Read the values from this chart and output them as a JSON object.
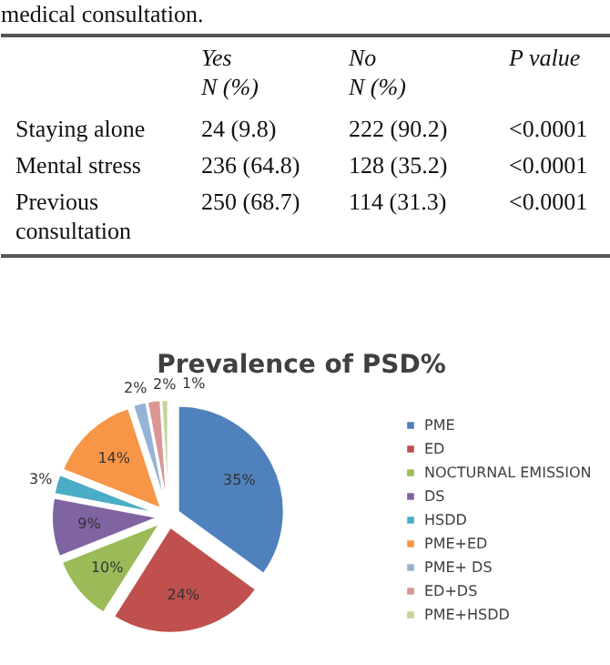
{
  "chart_data": {
    "type": "pie",
    "title": "Prevalence of PSD%",
    "annotations": [
      "medical consultation.",
      "Yes\nN (%)",
      "No\nN (%)",
      "P value",
      "Staying alone",
      "24 (9.8)",
      "222 (90.2)",
      "<0.0001",
      "Mental stress",
      "236 (64.8)",
      "128 (35.2)",
      "<0.0001",
      "Previous\nconsultation",
      "250 (68.7)",
      "114 (31.3)",
      "<0.0001"
    ],
    "categories": [
      "PME",
      "ED",
      "NOCTURNAL EMISSION",
      "DS",
      "HSDD",
      "PME+ED",
      "PME+ DS",
      "ED+DS",
      "PME+HSDD"
    ],
    "values": [
      35,
      24,
      10,
      9,
      3,
      14,
      2,
      2,
      1
    ],
    "value_labels": [
      "35%",
      "24%",
      "10%",
      "9%",
      "3%",
      "14%",
      "2%",
      "2%",
      "1%"
    ],
    "colors": [
      "#4f81bd",
      "#c0504d",
      "#9bbb59",
      "#8064a2",
      "#4bacc6",
      "#f79646",
      "#95b3d7",
      "#d99694",
      "#c3d69b"
    ],
    "legend": "right"
  }
}
